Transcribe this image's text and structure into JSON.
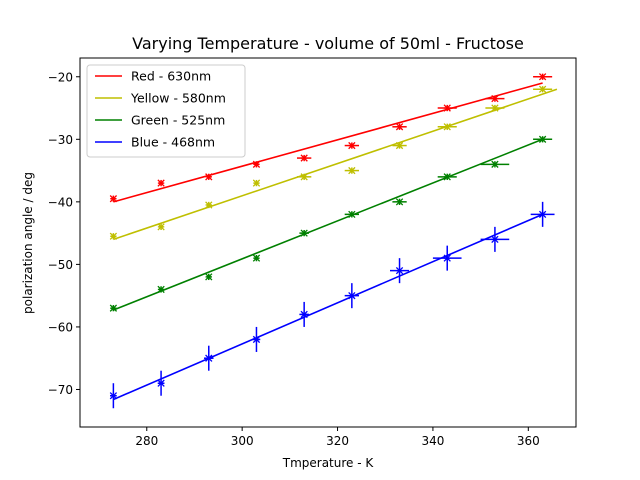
{
  "chart_data": {
    "type": "scatter",
    "title": "Varying Temperature - volume of 50ml - Fructose",
    "xlabel": "Tmperature - K",
    "ylabel": "polarization angle / deg",
    "xlim": [
      266,
      370
    ],
    "ylim": [
      -76,
      -17
    ],
    "xticks": [
      280,
      300,
      320,
      340,
      360
    ],
    "yticks": [
      -70,
      -60,
      -50,
      -40,
      -30,
      -20
    ],
    "grid": false,
    "legend_position": "top-left",
    "series": [
      {
        "name": "Red - 630nm",
        "color": "#ff0000",
        "x": [
          273,
          283,
          293,
          303,
          313,
          323,
          333,
          343,
          353,
          363
        ],
        "y": [
          -39.5,
          -37,
          -36,
          -34,
          -33,
          -31,
          -28,
          -25,
          -23.5,
          -20
        ],
        "xerr": [
          0.5,
          0.5,
          0.5,
          0.5,
          1.5,
          1.5,
          1.5,
          2,
          2,
          2
        ],
        "yerr": [
          0.5,
          0.5,
          0.5,
          0.5,
          0.5,
          0.5,
          0.5,
          0.5,
          0.5,
          0.5
        ],
        "fit": {
          "x": [
            273,
            363
          ],
          "y": [
            -40,
            -21
          ]
        }
      },
      {
        "name": "Yellow - 580nm",
        "color": "#bfbf00",
        "x": [
          273,
          283,
          293,
          303,
          313,
          323,
          333,
          343,
          353,
          363
        ],
        "y": [
          -45.5,
          -44,
          -40.5,
          -37,
          -36,
          -35,
          -31,
          -28,
          -25,
          -22
        ],
        "xerr": [
          0.5,
          0.5,
          0.5,
          0.5,
          1.5,
          1.5,
          1.5,
          2,
          2,
          2
        ],
        "yerr": [
          0.5,
          0.5,
          0.5,
          0.5,
          0.5,
          0.5,
          0.5,
          0.5,
          0.5,
          0.5
        ],
        "fit": {
          "x": [
            273,
            366
          ],
          "y": [
            -46,
            -22
          ]
        }
      },
      {
        "name": "Green - 525nm",
        "color": "#008000",
        "x": [
          273,
          283,
          293,
          303,
          313,
          323,
          333,
          343,
          353,
          363
        ],
        "y": [
          -57,
          -54,
          -52,
          -49,
          -45,
          -42,
          -40,
          -36,
          -34,
          -30
        ],
        "xerr": [
          0.5,
          0.5,
          0.5,
          0.5,
          1,
          1.5,
          1.5,
          2,
          3,
          2
        ],
        "yerr": [
          0.5,
          0.5,
          0.5,
          0.5,
          0.5,
          0.5,
          0.5,
          0.5,
          0.5,
          0.5
        ],
        "fit": {
          "x": [
            273,
            363
          ],
          "y": [
            -57.3,
            -30
          ]
        }
      },
      {
        "name": "Blue - 468nm",
        "color": "#0000ff",
        "x": [
          273,
          283,
          293,
          303,
          313,
          323,
          333,
          343,
          353,
          363
        ],
        "y": [
          -71,
          -69,
          -65,
          -62,
          -58,
          -55,
          -51,
          -49,
          -46,
          -42
        ],
        "xerr": [
          0.7,
          0.7,
          1,
          0.8,
          1,
          1.5,
          2,
          3,
          3,
          2.5
        ],
        "yerr": [
          2,
          2,
          2,
          2,
          2,
          2,
          2,
          2,
          2,
          2
        ],
        "fit": {
          "x": [
            273,
            363
          ],
          "y": [
            -71.6,
            -42
          ]
        }
      }
    ]
  }
}
